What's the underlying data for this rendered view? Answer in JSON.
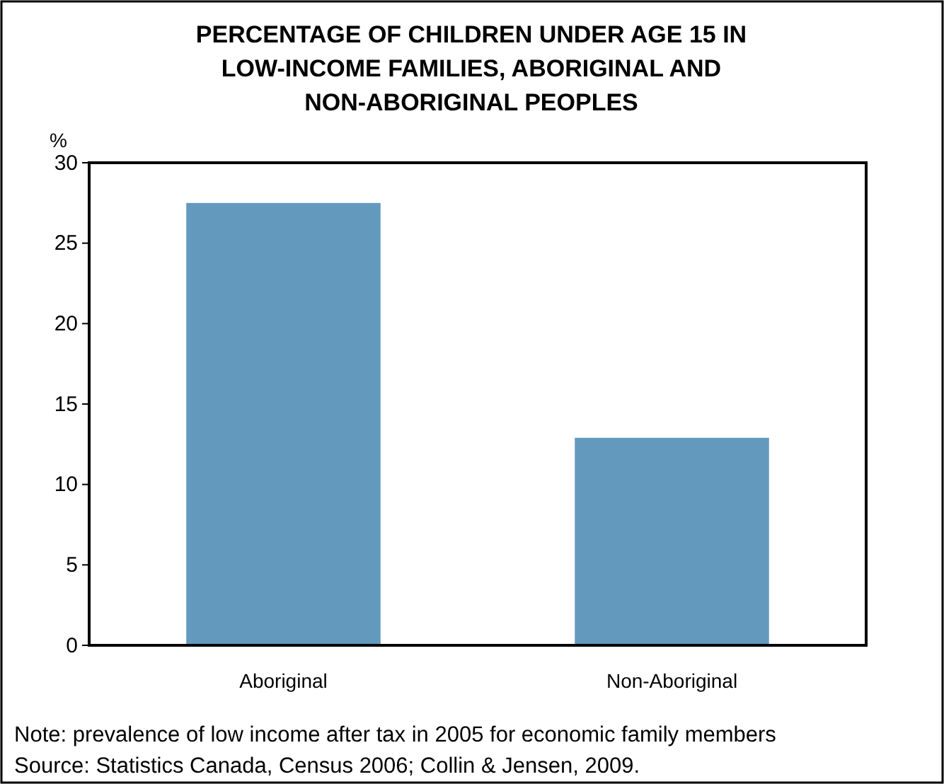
{
  "chart_data": {
    "type": "bar",
    "title": "PERCENTAGE OF CHILDREN UNDER AGE 15 IN LOW-INCOME FAMILIES, ABORIGINAL AND NON-ABORIGINAL PEOPLES",
    "ylabel": "%",
    "categories": [
      "Aboriginal",
      "Non-Aboriginal"
    ],
    "values": [
      27.5,
      12.9
    ],
    "color": "#6399bd",
    "ylim": [
      0,
      30
    ],
    "yticks": [
      0,
      5,
      10,
      15,
      20,
      25,
      30
    ],
    "grid": false,
    "annotations": [
      "Note: prevalence of low income after tax in 2005 for economic family members",
      "Source: Statistics Canada, Census 2006; Collin & Jensen, 2009."
    ]
  }
}
